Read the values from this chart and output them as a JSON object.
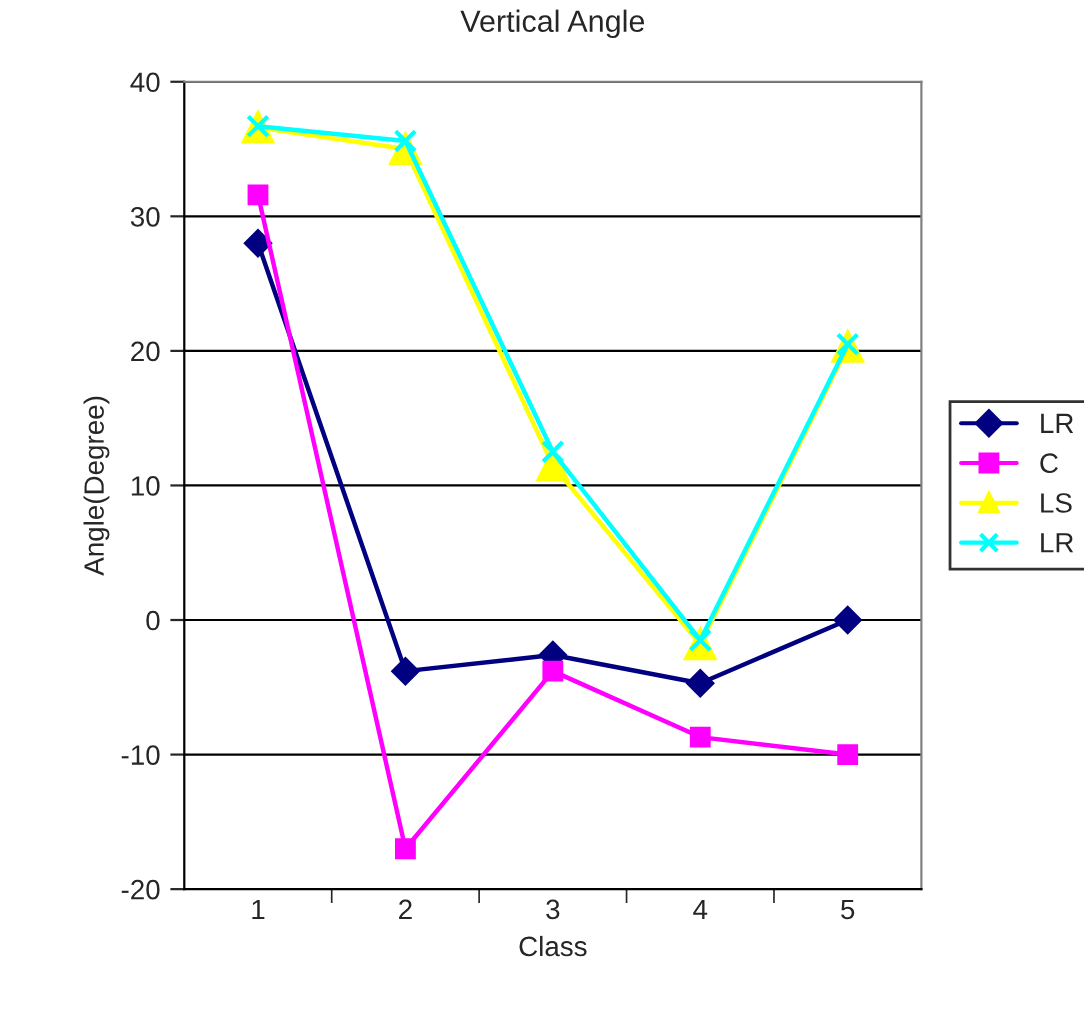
{
  "chart_data": {
    "type": "line",
    "title": "Vertical Angle",
    "xlabel": "Class",
    "ylabel": "Angle(Degree)",
    "categories": [
      "1",
      "2",
      "3",
      "4",
      "5"
    ],
    "series": [
      {
        "name": "LR",
        "color": "#000080",
        "marker": "diamond",
        "values": [
          28,
          -3.8,
          -2.6,
          -4.7,
          0
        ]
      },
      {
        "name": "C",
        "color": "#ff00ff",
        "marker": "square",
        "values": [
          31.6,
          -17,
          -3.8,
          -8.7,
          -10
        ]
      },
      {
        "name": "LS",
        "color": "#ffff00",
        "marker": "triangle",
        "values": [
          36.6,
          35,
          11.5,
          -1.8,
          20.3
        ]
      },
      {
        "name": "LR",
        "color": "#00ffff",
        "marker": "cross",
        "values": [
          36.7,
          35.6,
          12.5,
          -1.5,
          20.5
        ]
      }
    ],
    "ylim": [
      -20,
      40
    ],
    "yticks": [
      -20,
      -10,
      0,
      10,
      20,
      30,
      40
    ],
    "grid": "y",
    "legend": "right",
    "line_style": "solid"
  }
}
